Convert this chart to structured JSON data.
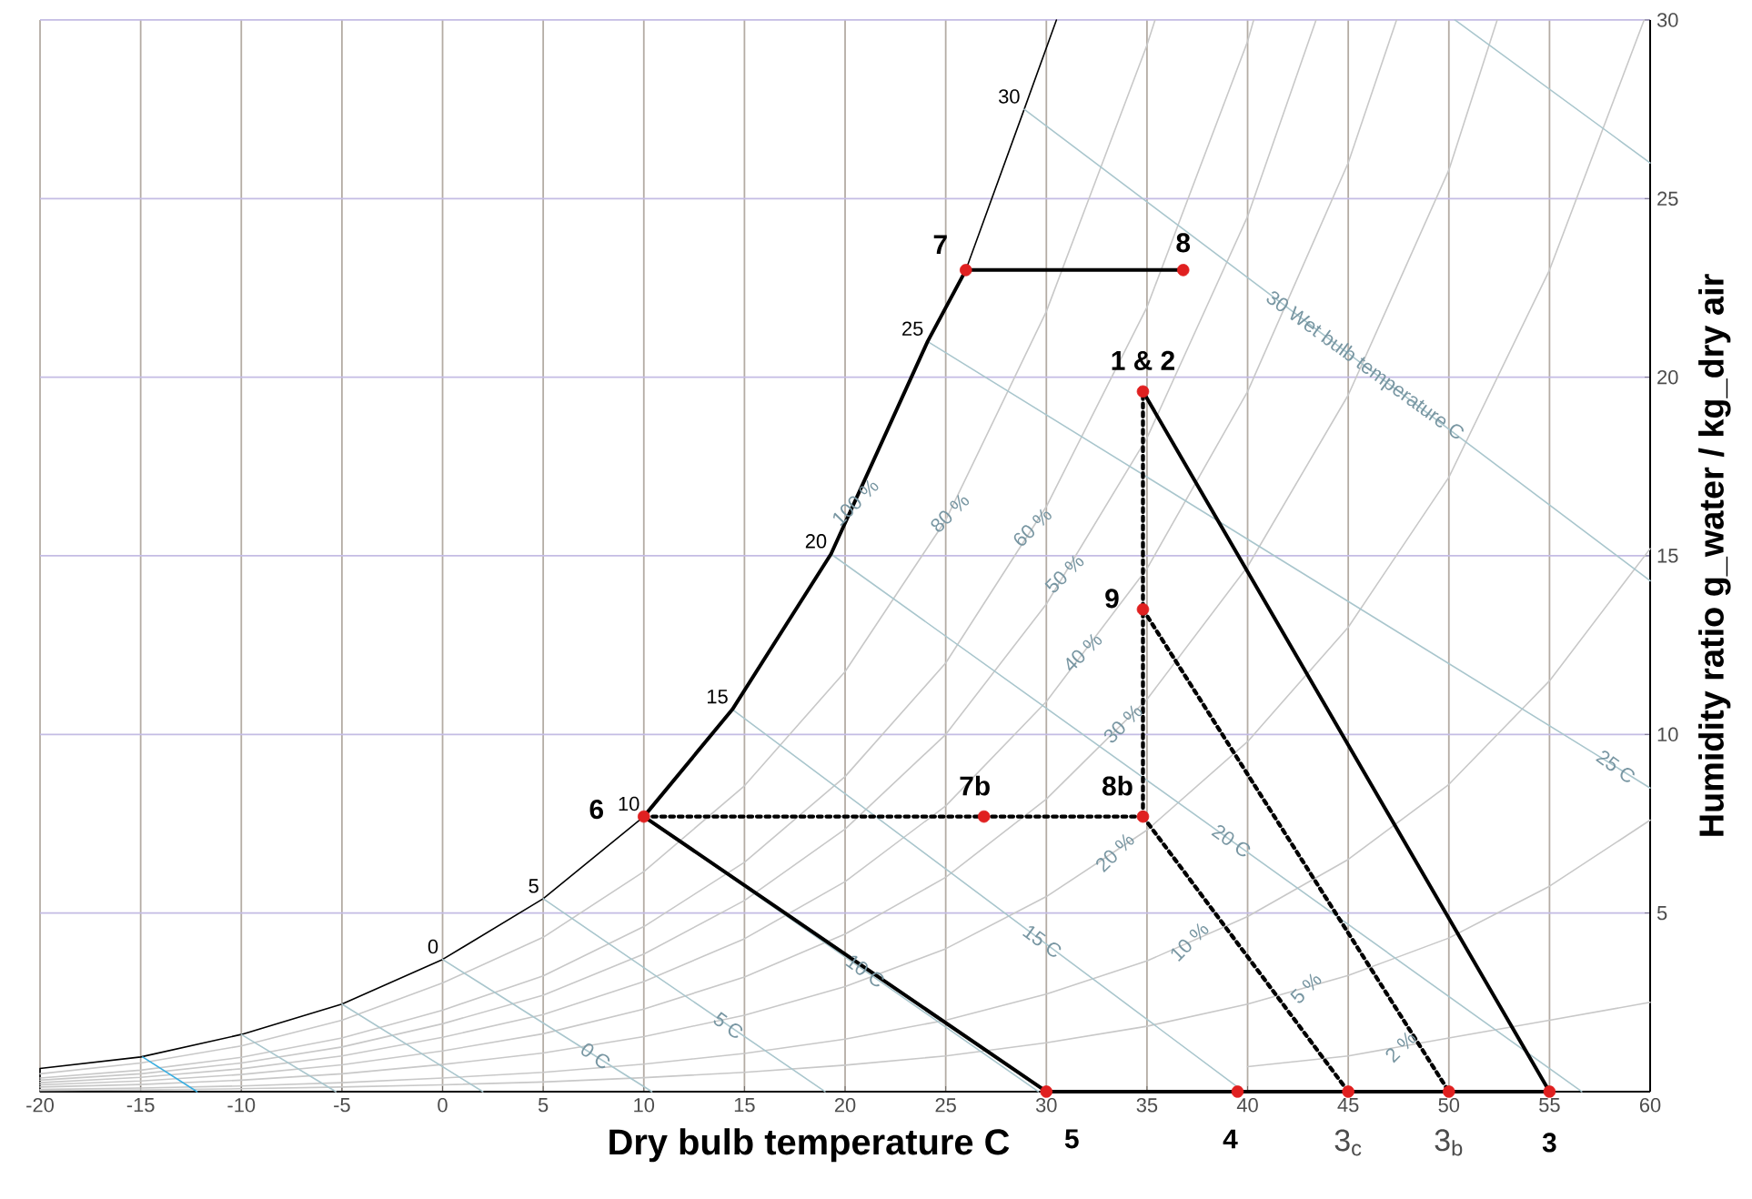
{
  "chart_data": {
    "type": "line",
    "xlabel": "Dry bulb temperature C",
    "ylabel": "Humidity ratio g_water / kg_dry air",
    "xlim": [
      -20,
      60
    ],
    "ylim": [
      0,
      30
    ],
    "xticks": [
      -20,
      -15,
      -10,
      -5,
      0,
      5,
      10,
      15,
      20,
      25,
      30,
      35,
      40,
      45,
      50,
      55,
      60
    ],
    "yticks": [
      {
        "value": 0,
        "label": null
      },
      5,
      10,
      15,
      20,
      25,
      30
    ],
    "grid": true,
    "series": [
      {
        "color": "#000000",
        "x": [
          -20,
          -20,
          -15,
          -10,
          -5,
          0,
          5,
          10,
          14.4,
          19.3,
          24.1,
          26,
          28.9,
          30.5
        ],
        "values": [
          0,
          0.65,
          0.97,
          1.6,
          2.45,
          3.7,
          5.4,
          7.7,
          10.7,
          15.05,
          21,
          23,
          27.5,
          30
        ]
      },
      {
        "color": "#c8c8c8",
        "x": [
          -20,
          -15,
          -10,
          -5,
          0,
          5,
          10,
          15,
          20,
          25,
          30,
          35,
          35.4
        ],
        "values": [
          0.5,
          0.8,
          1.28,
          2.0,
          3.04,
          4.32,
          6.16,
          8.56,
          11.76,
          16,
          21.84,
          29.3,
          30
        ]
      },
      {
        "color": "#c8c8c8",
        "x": [
          -20,
          -15,
          -10,
          -5,
          0,
          5,
          10,
          15,
          20,
          25,
          30,
          35,
          40,
          40.3
        ],
        "values": [
          0.38,
          0.6,
          0.96,
          1.5,
          2.28,
          3.24,
          4.62,
          6.42,
          8.82,
          12,
          16.38,
          21.96,
          29.4,
          30
        ]
      },
      {
        "color": "#c8c8c8",
        "x": [
          -20,
          -15,
          -10,
          -5,
          0,
          5,
          10,
          15,
          20,
          25,
          30,
          35,
          40,
          43.4
        ],
        "values": [
          0.32,
          0.5,
          0.8,
          1.25,
          1.9,
          2.7,
          3.85,
          5.35,
          7.35,
          10,
          13.65,
          18.3,
          24.5,
          30
        ]
      },
      {
        "color": "#c8c8c8",
        "x": [
          -20,
          -15,
          -10,
          -5,
          0,
          5,
          10,
          15,
          20,
          25,
          30,
          35,
          40,
          45,
          47.4
        ],
        "values": [
          0.25,
          0.4,
          0.64,
          1.0,
          1.52,
          2.16,
          3.08,
          4.28,
          5.88,
          8,
          10.92,
          14.64,
          19.6,
          26,
          30
        ]
      },
      {
        "color": "#c8c8c8",
        "x": [
          -20,
          -15,
          -10,
          -5,
          0,
          5,
          10,
          15,
          20,
          25,
          30,
          35,
          40,
          45,
          50,
          52.4
        ],
        "values": [
          0.19,
          0.3,
          0.48,
          0.75,
          1.14,
          1.62,
          2.31,
          3.21,
          4.41,
          6,
          8.19,
          10.98,
          14.7,
          19.5,
          25.8,
          30
        ]
      },
      {
        "color": "#c8c8c8",
        "x": [
          -20,
          -15,
          -10,
          -5,
          0,
          5,
          10,
          15,
          20,
          25,
          30,
          35,
          40,
          45,
          50,
          55,
          59.7
        ],
        "values": [
          0.13,
          0.2,
          0.32,
          0.5,
          0.76,
          1.08,
          1.54,
          2.14,
          2.94,
          4,
          5.46,
          7.32,
          9.8,
          13,
          17.2,
          23,
          30
        ]
      },
      {
        "color": "#c8c8c8",
        "x": [
          -20,
          -15,
          -10,
          -5,
          0,
          5,
          10,
          15,
          20,
          25,
          30,
          35,
          40,
          45,
          50,
          55,
          60
        ],
        "values": [
          0.06,
          0.1,
          0.16,
          0.25,
          0.38,
          0.54,
          0.77,
          1.07,
          1.47,
          2,
          2.73,
          3.66,
          4.9,
          6.5,
          8.6,
          11.5,
          15.2
        ]
      },
      {
        "color": "#c8c8c8",
        "x": [
          -20,
          -15,
          -10,
          -5,
          0,
          5,
          10,
          15,
          20,
          25,
          30,
          35,
          40,
          45,
          50,
          55,
          60
        ],
        "values": [
          0.03,
          0.05,
          0.08,
          0.13,
          0.19,
          0.27,
          0.39,
          0.54,
          0.74,
          1.0,
          1.37,
          1.83,
          2.45,
          3.25,
          4.3,
          5.75,
          7.6
        ]
      },
      {
        "color": "#c8c8c8",
        "x": [
          40,
          45,
          50,
          55,
          60
        ],
        "values": [
          0.7,
          1.0,
          1.5,
          2.0,
          2.5
        ]
      },
      {
        "color": "#3aaee0",
        "x": [
          -14.9,
          -12.2
        ],
        "values": [
          0.97,
          0
        ]
      },
      {
        "color": "#a9c6cd",
        "x": [
          -10,
          -5.3
        ],
        "values": [
          1.6,
          0
        ]
      },
      {
        "color": "#a9c6cd",
        "x": [
          -5,
          2
        ],
        "values": [
          2.45,
          0
        ]
      },
      {
        "color": "#a9c6cd",
        "x": [
          0,
          10.4
        ],
        "values": [
          3.7,
          0
        ]
      },
      {
        "color": "#a9c6cd",
        "x": [
          5,
          19
        ],
        "values": [
          5.4,
          0
        ]
      },
      {
        "color": "#a9c6cd",
        "x": [
          10,
          29.6
        ],
        "values": [
          7.7,
          0
        ]
      },
      {
        "color": "#a9c6cd",
        "x": [
          14.4,
          39.8
        ],
        "values": [
          10.7,
          0
        ]
      },
      {
        "color": "#a9c6cd",
        "x": [
          19.3,
          56.6
        ],
        "values": [
          15.05,
          0
        ]
      },
      {
        "color": "#a9c6cd",
        "x": [
          24.1,
          60
        ],
        "values": [
          21,
          8.5
        ]
      },
      {
        "color": "#a9c6cd",
        "x": [
          28.9,
          60
        ],
        "values": [
          27.5,
          14.3
        ]
      },
      {
        "color": "#a9c6cd",
        "x": [
          50.3,
          60
        ],
        "values": [
          30,
          26
        ]
      },
      {
        "color": "#000000",
        "line_style": "solid",
        "x": [
          10,
          14.4,
          19.3,
          24.1,
          26
        ],
        "values": [
          7.7,
          10.7,
          15.05,
          21,
          23
        ]
      },
      {
        "color": "#000000",
        "line_style": "solid",
        "x": [
          26,
          36.8
        ],
        "values": [
          23,
          23
        ]
      },
      {
        "color": "#000000",
        "line_style": "solid",
        "x": [
          34.8,
          55
        ],
        "values": [
          19.6,
          0
        ]
      },
      {
        "color": "#000000",
        "line_style": "solid",
        "x": [
          55,
          30
        ],
        "values": [
          0,
          0
        ]
      },
      {
        "color": "#000000",
        "line_style": "solid",
        "x": [
          30,
          10
        ],
        "values": [
          0,
          7.7
        ]
      },
      {
        "color": "#000000",
        "line_style": "dotted",
        "x": [
          10,
          34.8
        ],
        "values": [
          7.7,
          7.7
        ]
      },
      {
        "color": "#000000",
        "line_style": "dotted",
        "x": [
          34.8,
          34.8
        ],
        "values": [
          7.7,
          19.6
        ]
      },
      {
        "color": "#000000",
        "line_style": "dotted",
        "x": [
          34.8,
          50
        ],
        "values": [
          13.5,
          0
        ]
      },
      {
        "color": "#000000",
        "line_style": "dotted",
        "x": [
          34.8,
          45
        ],
        "values": [
          7.7,
          0
        ]
      },
      {
        "type": "scatter",
        "color": "#e02020",
        "marker": "circle",
        "x": [
          26,
          36.8,
          34.8,
          34.8,
          34.8,
          26.9,
          10,
          30,
          39.5,
          45,
          50,
          55
        ],
        "values": [
          23,
          23,
          19.6,
          13.5,
          7.7,
          7.7,
          7.7,
          0,
          0,
          0,
          0,
          0
        ]
      }
    ],
    "annotations": [
      {
        "text": "7",
        "x": 26,
        "y": 23
      },
      {
        "text": "8",
        "x": 36.8,
        "y": 23
      },
      {
        "text": "1 & 2",
        "x": 34.8,
        "y": 19.6
      },
      {
        "text": "9",
        "x": 34.8,
        "y": 13.5
      },
      {
        "text": "8b",
        "x": 34.8,
        "y": 7.7
      },
      {
        "text": "7b",
        "x": 26.9,
        "y": 7.7
      },
      {
        "text": "6",
        "x": 10,
        "y": 7.7
      },
      {
        "text": "5",
        "x": 30,
        "y": 0
      },
      {
        "text": "4",
        "x": 39.5,
        "y": 0
      },
      {
        "text": "3$_{c}$",
        "x": 45,
        "y": 0
      },
      {
        "text": "3$_{b}$",
        "x": 50,
        "y": 0
      },
      {
        "text": "3",
        "x": 55,
        "y": 0
      },
      {
        "text": "0",
        "x": 0,
        "y": 3.7
      },
      {
        "text": "5",
        "x": 5,
        "y": 5.4
      },
      {
        "text": "10",
        "x": 10,
        "y": 7.7
      },
      {
        "text": "15",
        "x": 14.4,
        "y": 10.7
      },
      {
        "text": "20",
        "x": 19.3,
        "y": 15.05
      },
      {
        "text": "25",
        "x": 24.1,
        "y": 21
      },
      {
        "text": "30",
        "x": 28.9,
        "y": 27.5
      },
      {
        "text": "100 %",
        "x": 20.5,
        "y": 16.5
      },
      {
        "text": "80 %",
        "x": 25.2,
        "y": 16.2
      },
      {
        "text": "60 %",
        "x": 29.3,
        "y": 15.8
      },
      {
        "text": "50 %",
        "x": 30.9,
        "y": 14.5
      },
      {
        "text": "40 %",
        "x": 31.8,
        "y": 12.3
      },
      {
        "text": "30 %",
        "x": 33.8,
        "y": 10.3
      },
      {
        "text": "20 %",
        "x": 33.4,
        "y": 6.7
      },
      {
        "text": "10 %",
        "x": 37.1,
        "y": 4.2
      },
      {
        "text": "5 %",
        "x": 42.9,
        "y": 2.9
      },
      {
        "text": "2 %",
        "x": 47.6,
        "y": 1.26
      },
      {
        "text": "0 C",
        "x": 7.6,
        "y": 1.0
      },
      {
        "text": "5 C",
        "x": 14.2,
        "y": 1.85
      },
      {
        "text": "10 C",
        "x": 21,
        "y": 3.38
      },
      {
        "text": "15 C",
        "x": 29.8,
        "y": 4.21
      },
      {
        "text": "20 C",
        "x": 39.2,
        "y": 7.02
      },
      {
        "text": "25 C",
        "x": 58.3,
        "y": 9.1
      },
      {
        "text": "30 Wet bulb temperature C",
        "x": 45.8,
        "y": 20.3
      }
    ]
  }
}
